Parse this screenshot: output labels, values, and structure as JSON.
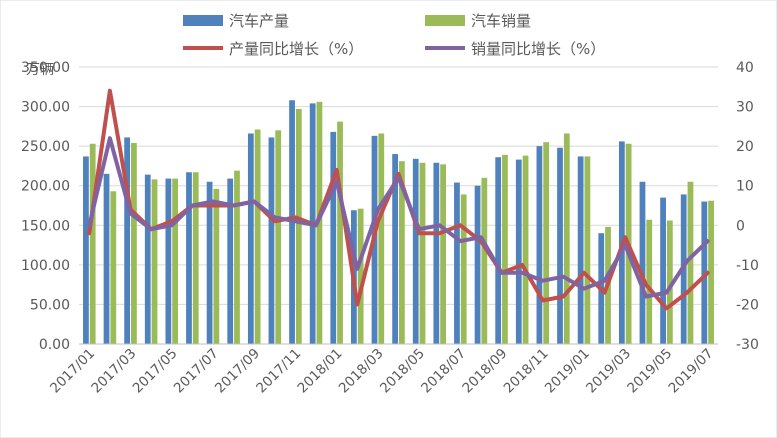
{
  "chart_data": {
    "type": "bar",
    "categories": [
      "2017/01",
      "2017/02",
      "2017/03",
      "2017/04",
      "2017/05",
      "2017/06",
      "2017/07",
      "2017/08",
      "2017/09",
      "2017/10",
      "2017/11",
      "2017/12",
      "2018/01",
      "2018/02",
      "2018/03",
      "2018/04",
      "2018/05",
      "2018/06",
      "2018/07",
      "2018/08",
      "2018/09",
      "2018/10",
      "2018/11",
      "2018/12",
      "2019/01",
      "2019/02",
      "2019/03",
      "2019/04",
      "2019/05",
      "2019/06",
      "2019/07"
    ],
    "x_tick_labels": [
      "2017/01",
      "2017/03",
      "2017/05",
      "2017/07",
      "2017/09",
      "2017/11",
      "2018/01",
      "2018/03",
      "2018/05",
      "2018/07",
      "2018/09",
      "2018/11",
      "2019/01",
      "2019/03",
      "2019/05",
      "2019/07"
    ],
    "y_unit_label": "万辆",
    "y_left_ticks": [
      "0.00",
      "50.00",
      "100.00",
      "150.00",
      "200.00",
      "250.00",
      "300.00",
      "350.00"
    ],
    "y_right_ticks": [
      "-30",
      "-20",
      "-10",
      "0",
      "10",
      "20",
      "30",
      "40"
    ],
    "ylim_left": [
      0,
      350
    ],
    "ylim_right": [
      -30,
      40
    ],
    "bar_series": [
      {
        "name": "汽车产量",
        "color": "#4f81bd",
        "values": [
          237,
          215,
          261,
          214,
          209,
          217,
          205,
          209,
          266,
          261,
          308,
          304,
          268,
          169,
          263,
          240,
          234,
          229,
          204,
          200,
          236,
          233,
          250,
          248,
          237,
          140,
          256,
          205,
          185,
          189,
          180
        ]
      },
      {
        "name": "汽车销量",
        "color": "#9bbb59",
        "values": [
          253,
          193,
          254,
          208,
          209,
          217,
          196,
          219,
          271,
          270,
          297,
          306,
          281,
          171,
          266,
          231,
          229,
          227,
          189,
          210,
          239,
          238,
          255,
          266,
          237,
          148,
          253,
          157,
          156,
          205,
          181
        ]
      }
    ],
    "line_series": [
      {
        "name": "产量同比增长（%）",
        "color": "#c0504d",
        "values": [
          -2,
          34,
          4,
          -1,
          1,
          5,
          5,
          5,
          6,
          1,
          2,
          0,
          14,
          -20,
          1,
          13,
          -2,
          -2,
          0,
          -4,
          -12,
          -10,
          -19,
          -18,
          -12,
          -17,
          -3,
          -15,
          -21,
          -17,
          -12
        ]
      },
      {
        "name": "销量同比增长（%）",
        "color": "#8064a2",
        "values": [
          0,
          22,
          3,
          -1,
          0,
          5,
          6,
          5,
          6,
          2,
          1,
          0,
          11,
          -11,
          4,
          12,
          -1,
          0,
          -4,
          -3,
          -12,
          -12,
          -14,
          -13,
          -16,
          -14,
          -5,
          -18,
          -17,
          -9,
          -4
        ]
      }
    ],
    "legend_position": "top",
    "grid": true
  }
}
